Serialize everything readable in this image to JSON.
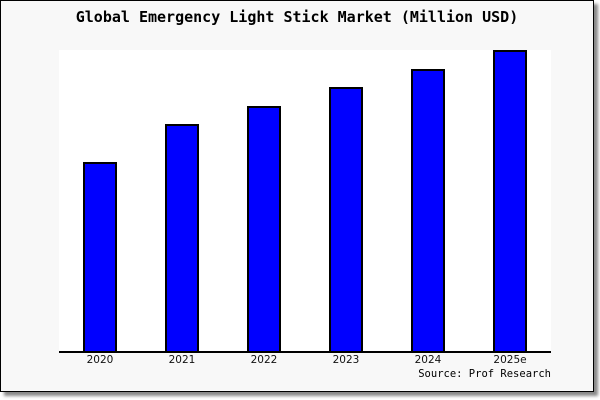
{
  "window": {
    "page_background": "#ffffff",
    "card_background": "#f8f8f8",
    "card_border_color": "#000000",
    "shadow_color": "#8a8a8a"
  },
  "chart": {
    "title": "Global Emergency Light Stick Market (Million USD)",
    "source": "Source: Prof Research",
    "bar_color": "#0000ff",
    "bar_border_color": "#000000",
    "plot_background": "#ffffff",
    "axis_color": "#000000"
  },
  "chart_data": {
    "type": "bar",
    "title": "Global Emergency Light Stick Market (Million USD)",
    "categories": [
      "2020",
      "2021",
      "2022",
      "2023",
      "2024",
      "2025e"
    ],
    "values": [
      62.7,
      75.3,
      81.5,
      87.8,
      93.7,
      100
    ],
    "value_note": "y-axis is unlabeled; values are relative bar heights as percent of tallest (2025e) bar, estimated from pixels",
    "xlabel": "",
    "ylabel": "",
    "ylim": [
      0,
      100
    ],
    "grid": false,
    "legend": null,
    "annotations": [
      "Source: Prof Research"
    ]
  }
}
